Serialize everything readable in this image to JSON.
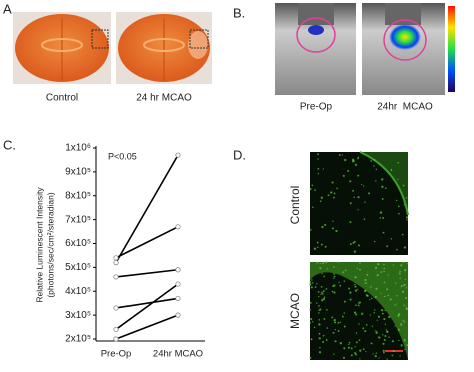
{
  "panels": {
    "a": {
      "label": "A.",
      "captions": [
        "Control",
        "24 hr MCAO"
      ]
    },
    "b": {
      "label": "B.",
      "captions": [
        "Pre-Op",
        "24hr  MCAO"
      ]
    },
    "c": {
      "label": "C."
    },
    "d": {
      "label": "D.",
      "captions": [
        "Control",
        "MCAO"
      ]
    }
  },
  "chart_data": {
    "type": "line",
    "y_label": "Relative Luminescent Intensity",
    "y_label_units": "(photons/sec/cm²/steradian)",
    "annotation": "P<0.05",
    "categories": [
      "Pre-Op",
      "24hr MCAO"
    ],
    "series": [
      {
        "color": "#000000",
        "values": [
          520000,
          970000
        ]
      },
      {
        "color": "#000000",
        "values": [
          540000,
          670000
        ]
      },
      {
        "color": "#000000",
        "values": [
          460000,
          490000
        ]
      },
      {
        "color": "#000000",
        "values": [
          330000,
          370000
        ]
      },
      {
        "color": "#000000",
        "values": [
          240000,
          430000
        ]
      },
      {
        "color": "#000000",
        "values": [
          200000,
          300000
        ]
      }
    ],
    "ylim": [
      200000,
      1000000
    ],
    "yticks": [
      {
        "value": 200000,
        "label": "2x10⁵"
      },
      {
        "value": 300000,
        "label": "3x10⁵"
      },
      {
        "value": 400000,
        "label": "4x10⁵"
      },
      {
        "value": 500000,
        "label": "5x10⁵"
      },
      {
        "value": 600000,
        "label": "6x10⁵"
      },
      {
        "value": 700000,
        "label": "7x10⁵"
      },
      {
        "value": 800000,
        "label": "8x10⁵"
      },
      {
        "value": 900000,
        "label": "9x10⁵"
      },
      {
        "value": 1000000,
        "label": "1x10⁶"
      }
    ]
  }
}
